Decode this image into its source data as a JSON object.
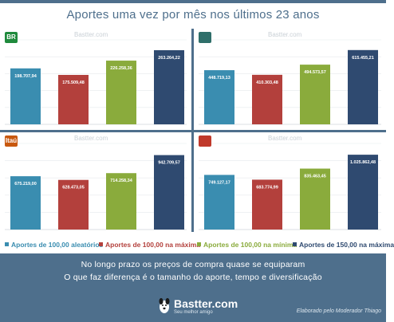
{
  "title": "Aportes uma vez por mês nos últimos 23 anos",
  "colors": {
    "series": [
      "#3a8db0",
      "#b3403c",
      "#8aab3c",
      "#2f4a70"
    ],
    "frame": "#4e6f8c"
  },
  "panels": [
    {
      "logo_text": "BR",
      "logo_color": "#1f8a3c",
      "watermark": "Bastter.com"
    },
    {
      "logo_text": "",
      "logo_color": "#2f6f6a",
      "watermark": "Bastter.com"
    },
    {
      "logo_text": "Itaú",
      "logo_color": "#c8580f",
      "watermark": "Bastter.com"
    },
    {
      "logo_text": "",
      "logo_color": "#c0392b",
      "watermark": "Bastter.com"
    }
  ],
  "chart_data": [
    {
      "type": "bar",
      "categories": [
        "Aportes de 100,00 aleatórios",
        "Aportes de 100,00 na máxima",
        "Aportes de 100,00 na mínima",
        "Aportes de 150,00 na máxima"
      ],
      "values": [
        198707.94,
        175509.48,
        226258.36,
        263264.22
      ],
      "labels": [
        "198.707,94",
        "175.509,48",
        "226.258,36",
        "263.264,22"
      ],
      "ylim": [
        0,
        300000
      ]
    },
    {
      "type": "bar",
      "categories": [
        "Aportes de 100,00 aleatórios",
        "Aportes de 100,00 na máxima",
        "Aportes de 100,00 na mínima",
        "Aportes de 150,00 na máxima"
      ],
      "values": [
        448719.13,
        410303.48,
        494573.57,
        615455.21
      ],
      "labels": [
        "448.719,13",
        "410.303,48",
        "494.573,57",
        "615.455,21"
      ],
      "ylim": [
        0,
        700000
      ]
    },
    {
      "type": "bar",
      "categories": [
        "Aportes de 100,00 aleatórios",
        "Aportes de 100,00 na máxima",
        "Aportes de 100,00 na mínima",
        "Aportes de 150,00 na máxima"
      ],
      "values": [
        675219.0,
        628473.05,
        714258.34,
        942709.57
      ],
      "labels": [
        "675.219,00",
        "628.473,05",
        "714.258,34",
        "942.709,57"
      ],
      "ylim": [
        0,
        1090000
      ]
    },
    {
      "type": "bar",
      "categories": [
        "Aportes de 100,00 aleatórios",
        "Aportes de 100,00 na máxima",
        "Aportes de 100,00 na mínima",
        "Aportes de 150,00 na máxima"
      ],
      "values": [
        749127.17,
        683774.99,
        835463.45,
        1025862.48
      ],
      "labels": [
        "749.127,17",
        "683.774,99",
        "835.463,45",
        "1.025.862,48"
      ],
      "ylim": [
        0,
        1180000
      ]
    }
  ],
  "legend": {
    "items": [
      "Aportes de 100,00 aleatórios",
      "Aportes de 100,00 na máxima",
      "Aportes de 100,00 na mínima",
      "Aportes de 150,00 na máxima"
    ]
  },
  "footer": {
    "line1": "No longo prazo os preços de compra quase se equiparam",
    "line2": "O que faz diferença é o tamanho do aporte, tempo e diversificação",
    "brand": "Bastter.com",
    "tagline": "Seu melhor amigo",
    "credit": "Elaborado pelo Moderador Thiago"
  }
}
